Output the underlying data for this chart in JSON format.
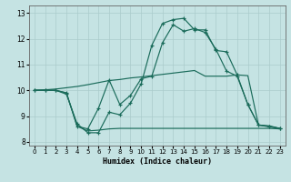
{
  "xlabel": "Humidex (Indice chaleur)",
  "background_color": "#c5e3e3",
  "line_color": "#1a6b5a",
  "grid_color": "#aacccc",
  "xlim": [
    -0.5,
    23.5
  ],
  "ylim": [
    7.85,
    13.3
  ],
  "xticks": [
    0,
    1,
    2,
    3,
    4,
    5,
    6,
    7,
    8,
    9,
    10,
    11,
    12,
    13,
    14,
    15,
    16,
    17,
    18,
    19,
    20,
    21,
    22,
    23
  ],
  "yticks": [
    8,
    9,
    10,
    11,
    12,
    13
  ],
  "curve1_x": [
    0,
    1,
    2,
    3,
    4,
    5,
    6,
    7,
    8,
    9,
    10,
    11,
    12,
    13,
    14,
    15,
    16,
    17,
    18,
    19,
    20,
    21,
    22,
    23
  ],
  "curve1_y": [
    10.0,
    10.0,
    10.0,
    9.85,
    8.7,
    8.35,
    8.35,
    9.15,
    9.05,
    9.5,
    10.25,
    11.75,
    12.6,
    12.75,
    12.8,
    12.35,
    12.35,
    11.55,
    11.5,
    10.6,
    9.45,
    8.65,
    8.58,
    8.52
  ],
  "curve1_markers": true,
  "curve2_x": [
    0,
    1,
    2,
    3,
    4,
    5,
    6,
    7,
    8,
    9,
    10,
    11,
    12,
    13,
    14,
    15,
    16,
    17,
    18,
    19,
    20,
    21,
    22,
    23
  ],
  "curve2_y": [
    10.0,
    10.0,
    10.0,
    9.9,
    8.6,
    8.5,
    9.3,
    10.4,
    9.45,
    9.8,
    10.45,
    10.55,
    11.85,
    12.55,
    12.3,
    12.4,
    12.25,
    11.6,
    10.75,
    10.55,
    9.45,
    8.65,
    8.6,
    8.52
  ],
  "curve2_markers": true,
  "curve3_x": [
    0,
    1,
    2,
    3,
    4,
    5,
    6,
    7,
    8,
    9,
    10,
    11,
    12,
    13,
    14,
    15,
    16,
    17,
    18,
    19,
    20,
    21,
    22,
    23
  ],
  "curve3_y": [
    10.0,
    10.02,
    10.05,
    10.1,
    10.15,
    10.22,
    10.3,
    10.38,
    10.42,
    10.48,
    10.52,
    10.57,
    10.62,
    10.67,
    10.72,
    10.77,
    10.55,
    10.55,
    10.55,
    10.6,
    10.57,
    8.65,
    8.62,
    8.52
  ],
  "curve3_markers": false,
  "curve4_x": [
    0,
    1,
    2,
    3,
    4,
    5,
    6,
    7,
    8,
    9,
    10,
    11,
    12,
    13,
    14,
    15,
    16,
    17,
    18,
    19,
    20,
    21,
    22,
    23
  ],
  "curve4_y": [
    10.0,
    10.0,
    10.0,
    9.9,
    8.6,
    8.42,
    8.45,
    8.5,
    8.52,
    8.52,
    8.52,
    8.52,
    8.52,
    8.52,
    8.52,
    8.52,
    8.52,
    8.52,
    8.52,
    8.52,
    8.52,
    8.52,
    8.52,
    8.5
  ],
  "curve4_markers": false
}
